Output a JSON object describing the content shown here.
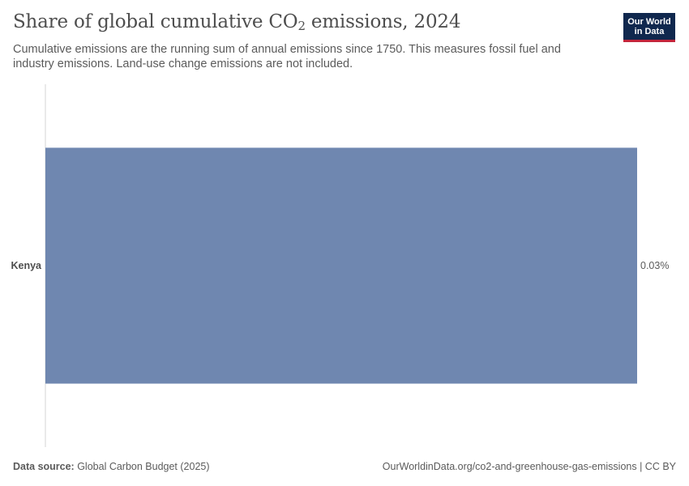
{
  "header": {
    "title_main": "Share of global cumulative CO",
    "title_sub": "2",
    "title_tail": " emissions, 2024",
    "subtitle": "Cumulative emissions are the running sum of annual emissions since 1750. This measures fossil fuel and industry emissions. Land-use change emissions are not included."
  },
  "logo": {
    "line1": "Our World",
    "line2": "in Data",
    "bg_color": "#10284e",
    "accent_color": "#c3253b"
  },
  "chart_data": {
    "type": "bar",
    "orientation": "horizontal",
    "categories": [
      "Kenya"
    ],
    "values": [
      0.03
    ],
    "value_labels": [
      "0.03%"
    ],
    "unit": "%",
    "bar_color": "#6f87b0",
    "xlim": [
      0,
      0.03
    ],
    "grid": false,
    "title": "Share of global cumulative CO₂ emissions, 2024"
  },
  "footer": {
    "source_label": "Data source:",
    "source_text": " Global Carbon Budget (2025)",
    "link_text": "OurWorldinData.org/co2-and-greenhouse-gas-emissions",
    "license": " | CC BY"
  }
}
